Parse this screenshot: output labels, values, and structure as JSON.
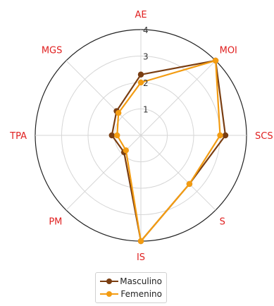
{
  "chart_data": {
    "type": "radar",
    "axes": [
      "AE",
      "MOI",
      "SCS",
      "S",
      "IS",
      "PM",
      "TPA",
      "MGS"
    ],
    "rlim": [
      0,
      4
    ],
    "ring_labels": [
      "1",
      "2",
      "3",
      "4"
    ],
    "series": [
      {
        "name": "Masculino",
        "color": "#7a3e12",
        "values": [
          2.3,
          4.0,
          3.2,
          2.6,
          4.0,
          0.9,
          1.1,
          1.3
        ]
      },
      {
        "name": "Femenino",
        "color": "#f39c12",
        "values": [
          2.0,
          4.0,
          3.0,
          2.6,
          4.0,
          0.8,
          0.9,
          1.2
        ]
      }
    ],
    "label_color": "#e02020",
    "grid": true,
    "legend_position": "bottom-center"
  }
}
